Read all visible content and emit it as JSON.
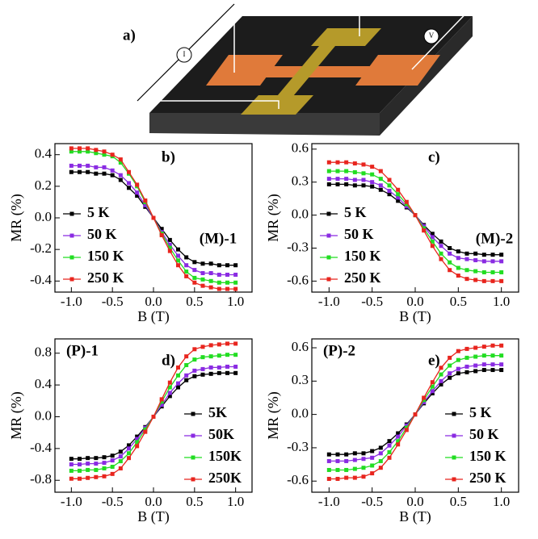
{
  "diagram": {
    "label": "a)",
    "current_meter": "I",
    "voltage_meter": "V"
  },
  "chart_data": [
    {
      "type": "line",
      "panel": "b)",
      "annotation": "(M)-1",
      "xlabel": "B (T)",
      "ylabel": "MR (%)",
      "x": [
        -1,
        -0.9,
        -0.8,
        -0.7,
        -0.6,
        -0.5,
        -0.4,
        -0.3,
        -0.2,
        -0.1,
        0,
        0.1,
        0.2,
        0.3,
        0.4,
        0.5,
        0.6,
        0.7,
        0.8,
        0.9,
        1
      ],
      "series": [
        {
          "name": "5 K",
          "color": "#000000",
          "values": [
            0.29,
            0.29,
            0.29,
            0.28,
            0.28,
            0.27,
            0.24,
            0.19,
            0.14,
            0.07,
            0,
            -0.07,
            -0.14,
            -0.2,
            -0.25,
            -0.28,
            -0.29,
            -0.29,
            -0.3,
            -0.3,
            -0.3
          ]
        },
        {
          "name": "50 K",
          "color": "#8a2be2",
          "values": [
            0.33,
            0.33,
            0.33,
            0.32,
            0.32,
            0.3,
            0.27,
            0.22,
            0.16,
            0.08,
            0,
            -0.09,
            -0.17,
            -0.24,
            -0.3,
            -0.33,
            -0.35,
            -0.35,
            -0.36,
            -0.36,
            -0.36
          ]
        },
        {
          "name": "150 K",
          "color": "#22dd22",
          "values": [
            0.42,
            0.42,
            0.42,
            0.41,
            0.4,
            0.39,
            0.35,
            0.28,
            0.2,
            0.1,
            0,
            -0.1,
            -0.19,
            -0.27,
            -0.34,
            -0.38,
            -0.39,
            -0.4,
            -0.41,
            -0.41,
            -0.41
          ]
        },
        {
          "name": "250 K",
          "color": "#e8251e",
          "values": [
            0.44,
            0.44,
            0.44,
            0.43,
            0.42,
            0.4,
            0.37,
            0.29,
            0.21,
            0.11,
            0,
            -0.11,
            -0.21,
            -0.3,
            -0.37,
            -0.41,
            -0.43,
            -0.44,
            -0.45,
            -0.45,
            -0.45
          ]
        }
      ],
      "xlim": [
        -1.2,
        1.2
      ],
      "ylim": [
        -0.47,
        0.47
      ],
      "xticks": [
        {
          "value": -1,
          "label": "-1.0"
        },
        -0.5,
        {
          "value": 0,
          "label": "0.0"
        },
        0.5,
        {
          "value": 1,
          "label": "1.0"
        }
      ],
      "yticks": [
        0.4,
        0.2,
        {
          "value": 0,
          "label": "0.0"
        },
        -0.2,
        -0.4
      ]
    },
    {
      "type": "line",
      "panel": "c)",
      "annotation": "(M)-2",
      "xlabel": "B (T)",
      "ylabel": "MR (%)",
      "x": [
        -1,
        -0.9,
        -0.8,
        -0.7,
        -0.6,
        -0.5,
        -0.4,
        -0.3,
        -0.2,
        -0.1,
        0,
        0.1,
        0.2,
        0.3,
        0.4,
        0.5,
        0.6,
        0.7,
        0.8,
        0.9,
        1
      ],
      "series": [
        {
          "name": "5 K",
          "color": "#000000",
          "values": [
            0.28,
            0.28,
            0.28,
            0.27,
            0.27,
            0.26,
            0.23,
            0.19,
            0.13,
            0.07,
            0,
            -0.09,
            -0.17,
            -0.24,
            -0.3,
            -0.33,
            -0.35,
            -0.35,
            -0.36,
            -0.36,
            -0.36
          ]
        },
        {
          "name": "50 K",
          "color": "#8a2be2",
          "values": [
            0.33,
            0.33,
            0.33,
            0.32,
            0.32,
            0.3,
            0.27,
            0.22,
            0.16,
            0.08,
            0,
            -0.1,
            -0.2,
            -0.28,
            -0.35,
            -0.39,
            -0.4,
            -0.41,
            -0.42,
            -0.42,
            -0.42
          ]
        },
        {
          "name": "150 K",
          "color": "#22dd22",
          "values": [
            0.4,
            0.4,
            0.4,
            0.39,
            0.38,
            0.37,
            0.33,
            0.27,
            0.19,
            0.1,
            0,
            -0.12,
            -0.24,
            -0.35,
            -0.43,
            -0.48,
            -0.5,
            -0.51,
            -0.52,
            -0.52,
            -0.52
          ]
        },
        {
          "name": "250 K",
          "color": "#e8251e",
          "values": [
            0.48,
            0.48,
            0.48,
            0.47,
            0.46,
            0.44,
            0.4,
            0.32,
            0.23,
            0.12,
            0,
            -0.14,
            -0.28,
            -0.4,
            -0.5,
            -0.55,
            -0.58,
            -0.59,
            -0.6,
            -0.6,
            -0.6
          ]
        }
      ],
      "xlim": [
        -1.2,
        1.2
      ],
      "ylim": [
        -0.7,
        0.65
      ],
      "xticks": [
        {
          "value": -1,
          "label": "-1.0"
        },
        -0.5,
        {
          "value": 0,
          "label": "0.0"
        },
        0.5,
        {
          "value": 1,
          "label": "1.0"
        }
      ],
      "yticks": [
        0.6,
        0.3,
        {
          "value": 0,
          "label": "0.0"
        },
        -0.3,
        -0.6
      ]
    },
    {
      "type": "line",
      "panel": "d)",
      "annotation": "(P)-1",
      "xlabel": "B (T)",
      "ylabel": "MR (%)",
      "x": [
        -1,
        -0.9,
        -0.8,
        -0.7,
        -0.6,
        -0.5,
        -0.4,
        -0.3,
        -0.2,
        -0.1,
        0,
        0.1,
        0.2,
        0.3,
        0.4,
        0.5,
        0.6,
        0.7,
        0.8,
        0.9,
        1
      ],
      "series": [
        {
          "name": "5K",
          "color": "#000000",
          "values": [
            -0.53,
            -0.53,
            -0.52,
            -0.52,
            -0.51,
            -0.49,
            -0.44,
            -0.36,
            -0.25,
            -0.13,
            0,
            0.13,
            0.26,
            0.37,
            0.46,
            0.51,
            0.53,
            0.54,
            0.55,
            0.55,
            0.55
          ]
        },
        {
          "name": "50K",
          "color": "#8a2be2",
          "values": [
            -0.6,
            -0.6,
            -0.59,
            -0.59,
            -0.58,
            -0.55,
            -0.5,
            -0.4,
            -0.28,
            -0.14,
            0,
            0.15,
            0.3,
            0.42,
            0.52,
            0.58,
            0.6,
            0.62,
            0.62,
            0.63,
            0.63
          ]
        },
        {
          "name": "150K",
          "color": "#22dd22",
          "values": [
            -0.68,
            -0.68,
            -0.67,
            -0.67,
            -0.65,
            -0.63,
            -0.56,
            -0.46,
            -0.32,
            -0.16,
            0,
            0.19,
            0.37,
            0.52,
            0.65,
            0.72,
            0.75,
            0.76,
            0.77,
            0.78,
            0.78
          ]
        },
        {
          "name": "250K",
          "color": "#e8251e",
          "values": [
            -0.78,
            -0.78,
            -0.77,
            -0.76,
            -0.75,
            -0.72,
            -0.65,
            -0.52,
            -0.37,
            -0.19,
            0,
            0.22,
            0.43,
            0.62,
            0.76,
            0.85,
            0.88,
            0.9,
            0.91,
            0.92,
            0.92
          ]
        }
      ],
      "xlim": [
        -1.2,
        1.2
      ],
      "ylim": [
        -0.95,
        0.98
      ],
      "xticks": [
        {
          "value": -1,
          "label": "-1.0"
        },
        -0.5,
        {
          "value": 0,
          "label": "0.0"
        },
        0.5,
        {
          "value": 1,
          "label": "1.0"
        }
      ],
      "yticks": [
        0.8,
        0.4,
        {
          "value": 0,
          "label": "0.0"
        },
        -0.4,
        -0.8
      ]
    },
    {
      "type": "line",
      "panel": "e)",
      "annotation": "(P)-2",
      "xlabel": "B (T)",
      "ylabel": "MR (%)",
      "x": [
        -1,
        -0.9,
        -0.8,
        -0.7,
        -0.6,
        -0.5,
        -0.4,
        -0.3,
        -0.2,
        -0.1,
        0,
        0.1,
        0.2,
        0.3,
        0.4,
        0.5,
        0.6,
        0.7,
        0.8,
        0.9,
        1
      ],
      "series": [
        {
          "name": "5 K",
          "color": "#000000",
          "values": [
            -0.36,
            -0.36,
            -0.36,
            -0.35,
            -0.35,
            -0.33,
            -0.3,
            -0.24,
            -0.17,
            -0.09,
            0,
            0.1,
            0.19,
            0.27,
            0.33,
            0.37,
            0.38,
            0.39,
            0.4,
            0.4,
            0.4
          ]
        },
        {
          "name": "50 K",
          "color": "#8a2be2",
          "values": [
            -0.42,
            -0.42,
            -0.42,
            -0.41,
            -0.4,
            -0.39,
            -0.35,
            -0.28,
            -0.2,
            -0.1,
            0,
            0.11,
            0.21,
            0.3,
            0.37,
            0.41,
            0.43,
            0.44,
            0.45,
            0.45,
            0.45
          ]
        },
        {
          "name": "150 K",
          "color": "#22dd22",
          "values": [
            -0.5,
            -0.5,
            -0.5,
            -0.49,
            -0.48,
            -0.46,
            -0.42,
            -0.34,
            -0.24,
            -0.12,
            0,
            0.13,
            0.25,
            0.36,
            0.44,
            0.49,
            0.51,
            0.52,
            0.53,
            0.53,
            0.53
          ]
        },
        {
          "name": "250 K",
          "color": "#e8251e",
          "values": [
            -0.58,
            -0.58,
            -0.57,
            -0.57,
            -0.56,
            -0.53,
            -0.48,
            -0.39,
            -0.27,
            -0.14,
            0,
            0.15,
            0.29,
            0.42,
            0.51,
            0.57,
            0.59,
            0.6,
            0.61,
            0.62,
            0.62
          ]
        }
      ],
      "xlim": [
        -1.2,
        1.2
      ],
      "ylim": [
        -0.7,
        0.68
      ],
      "xticks": [
        {
          "value": -1,
          "label": "-1.0"
        },
        -0.5,
        {
          "value": 0,
          "label": "0.0"
        },
        0.5,
        {
          "value": 1,
          "label": "1.0"
        }
      ],
      "yticks": [
        0.6,
        0.3,
        {
          "value": 0,
          "label": "0.0"
        },
        -0.3,
        -0.6
      ]
    }
  ]
}
